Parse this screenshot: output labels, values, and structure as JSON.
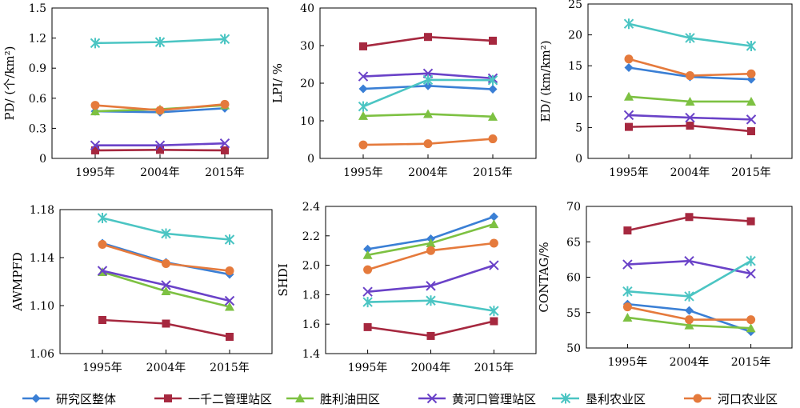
{
  "chart_data": [
    {
      "type": "line",
      "ylabel": "PD/ (个/km²)",
      "categories": [
        "1995年",
        "2004年",
        "2015年"
      ],
      "ylim": [
        0,
        1.5
      ],
      "yticks": [
        "0",
        "0.3",
        "0.6",
        "0.9",
        "1.2",
        "1.5"
      ],
      "series": [
        {
          "name": "研究区整体",
          "values": [
            0.47,
            0.46,
            0.5
          ]
        },
        {
          "name": "一千二管理站区",
          "values": [
            0.08,
            0.085,
            0.08
          ]
        },
        {
          "name": "胜利油田区",
          "values": [
            0.47,
            0.49,
            0.53
          ]
        },
        {
          "name": "黄河口管理站区",
          "values": [
            0.13,
            0.13,
            0.15
          ]
        },
        {
          "name": "垦利农业区",
          "values": [
            1.15,
            1.16,
            1.19
          ]
        },
        {
          "name": "河口农业区",
          "values": [
            0.53,
            0.48,
            0.54
          ]
        }
      ]
    },
    {
      "type": "line",
      "ylabel": "LPI/ %",
      "categories": [
        "1995年",
        "2004年",
        "2015年"
      ],
      "ylim": [
        0,
        40
      ],
      "yticks": [
        "0",
        "10",
        "20",
        "30",
        "40"
      ],
      "series": [
        {
          "name": "研究区整体",
          "values": [
            18.5,
            19.3,
            18.4
          ]
        },
        {
          "name": "一千二管理站区",
          "values": [
            29.8,
            32.3,
            31.3
          ]
        },
        {
          "name": "胜利油田区",
          "values": [
            11.3,
            11.8,
            11.1
          ]
        },
        {
          "name": "黄河口管理站区",
          "values": [
            21.8,
            22.6,
            21.3
          ]
        },
        {
          "name": "垦利农业区",
          "values": [
            13.8,
            20.9,
            20.8
          ]
        },
        {
          "name": "河口农业区",
          "values": [
            3.6,
            3.9,
            5.2
          ]
        }
      ]
    },
    {
      "type": "line",
      "ylabel": "ED/ (km/km²)",
      "categories": [
        "1995年",
        "2004年",
        "2015年"
      ],
      "ylim": [
        0,
        25
      ],
      "yticks": [
        "0",
        "5",
        "10",
        "15",
        "20",
        "25"
      ],
      "series": [
        {
          "name": "研究区整体",
          "values": [
            14.7,
            13.2,
            12.8
          ]
        },
        {
          "name": "一千二管理站区",
          "values": [
            5.1,
            5.3,
            4.4
          ]
        },
        {
          "name": "胜利油田区",
          "values": [
            10.0,
            9.2,
            9.2
          ]
        },
        {
          "name": "黄河口管理站区",
          "values": [
            7.0,
            6.6,
            6.3
          ]
        },
        {
          "name": "垦利农业区",
          "values": [
            21.8,
            19.5,
            18.2
          ]
        },
        {
          "name": "河口农业区",
          "values": [
            16.1,
            13.4,
            13.7
          ]
        }
      ]
    },
    {
      "type": "line",
      "ylabel": "AWMPFD",
      "categories": [
        "1995年",
        "2004年",
        "2015年"
      ],
      "ylim": [
        1.06,
        1.18
      ],
      "yticks": [
        "1.06",
        "1.10",
        "1.14",
        "1.18"
      ],
      "series": [
        {
          "name": "研究区整体",
          "values": [
            1.152,
            1.136,
            1.126
          ]
        },
        {
          "name": "一千二管理站区",
          "values": [
            1.088,
            1.085,
            1.074
          ]
        },
        {
          "name": "胜利油田区",
          "values": [
            1.128,
            1.112,
            1.099
          ]
        },
        {
          "name": "黄河口管理站区",
          "values": [
            1.129,
            1.117,
            1.104
          ]
        },
        {
          "name": "垦利农业区",
          "values": [
            1.173,
            1.16,
            1.155
          ]
        },
        {
          "name": "河口农业区",
          "values": [
            1.151,
            1.135,
            1.129
          ]
        }
      ]
    },
    {
      "type": "line",
      "ylabel": "SHDI",
      "categories": [
        "1995年",
        "2004年",
        "2015年"
      ],
      "ylim": [
        1.4,
        2.4
      ],
      "yticks": [
        "1.4",
        "1.6",
        "1.8",
        "2.0",
        "2.2",
        "2.4"
      ],
      "series": [
        {
          "name": "研究区整体",
          "values": [
            2.11,
            2.18,
            2.33
          ]
        },
        {
          "name": "一千二管理站区",
          "values": [
            1.58,
            1.52,
            1.62
          ]
        },
        {
          "name": "胜利油田区",
          "values": [
            2.07,
            2.15,
            2.28
          ]
        },
        {
          "name": "黄河口管理站区",
          "values": [
            1.82,
            1.86,
            2.0
          ]
        },
        {
          "name": "垦利农业区",
          "values": [
            1.75,
            1.76,
            1.69
          ]
        },
        {
          "name": "河口农业区",
          "values": [
            1.97,
            2.1,
            2.15
          ]
        }
      ]
    },
    {
      "type": "line",
      "ylabel": "CONTAG/%",
      "categories": [
        "1995年",
        "2004年",
        "2015年"
      ],
      "ylim": [
        50,
        70
      ],
      "yticks": [
        "50",
        "55",
        "60",
        "65",
        "70"
      ],
      "series": [
        {
          "name": "研究区整体",
          "values": [
            56.2,
            55.3,
            52.3
          ]
        },
        {
          "name": "一千二管理站区",
          "values": [
            66.6,
            68.5,
            67.9
          ]
        },
        {
          "name": "胜利油田区",
          "values": [
            54.3,
            53.2,
            52.8
          ]
        },
        {
          "name": "黄河口管理站区",
          "values": [
            61.8,
            62.3,
            60.5
          ]
        },
        {
          "name": "垦利农业区",
          "values": [
            58.0,
            57.3,
            62.3
          ]
        },
        {
          "name": "河口农业区",
          "values": [
            55.8,
            54.0,
            54.0
          ]
        }
      ]
    }
  ],
  "legend": [
    {
      "name": "研究区整体",
      "color": "#3a7fd5",
      "marker": "diamond"
    },
    {
      "name": "一千二管理站区",
      "color": "#a6283f",
      "marker": "square"
    },
    {
      "name": "胜利油田区",
      "color": "#7dc142",
      "marker": "triangle"
    },
    {
      "name": "黄河口管理站区",
      "color": "#6a42c8",
      "marker": "x"
    },
    {
      "name": "垦利农业区",
      "color": "#4bc5c3",
      "marker": "star"
    },
    {
      "name": "河口农业区",
      "color": "#e57a3c",
      "marker": "circle"
    }
  ]
}
